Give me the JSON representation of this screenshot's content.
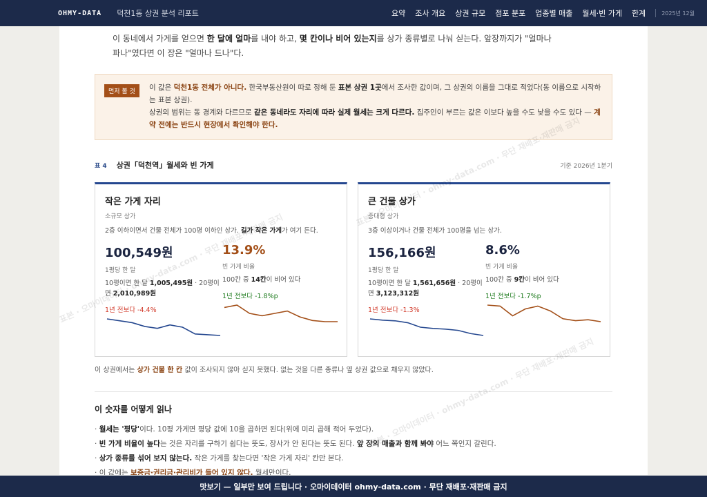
{
  "header": {
    "brand": "OHMY-DATA",
    "report_title": "덕천1동 상권 분석 리포트",
    "nav": [
      "요약",
      "조사 개요",
      "상권 규모",
      "점포 분포",
      "업종별 매출",
      "월세·빈 가게",
      "한계"
    ],
    "date_chip": "2025년 12월"
  },
  "intro": {
    "p1": "이 동네에서 가게를 얻으면 ",
    "b1": "한 달에 얼마",
    "p2": "를 내야 하고, ",
    "b2": "몇 칸이나 비어 있는지",
    "p3": "를 상가 종류별로 나눠 싣는다. 앞장까지가 \"얼마나 파나\"였다면 이 장은 \"얼마나 드나\"다."
  },
  "notice": {
    "badge": "먼저 볼 것",
    "t1": "이 값은 ",
    "a1": "덕천1동 전체가 아니다.",
    "t2": " 한국부동산원이 따로 정해 둔 ",
    "b1": "표본 상권 1곳",
    "t3": "에서 조사한 값이며, 그 상권의 이름을 그대로 적었다(동 이름으로 시작하는 표본 상권).",
    "t4": "상권의 범위는 동 경계와 다르므로 ",
    "b2": "같은 동네라도 자리에 따라 실제 월세는 크게 다르다.",
    "t5": " 집주인이 부르는 값은 이보다 높을 수도 낮을 수도 있다 — ",
    "a2": "계약 전에는 반드시 현장에서 확인해야 한다."
  },
  "table": {
    "number": "표 4",
    "title": "상권「덕천역」월세와 빈 가게",
    "basis": "기준 2026년 1분기"
  },
  "cards": [
    {
      "title": "작은 가게 자리",
      "subtitle": "소규모 상가",
      "desc_pre": "2층 이하이면서 건물 전체가 100평 이하인 상가. ",
      "desc_bold": "길가 작은 가게",
      "desc_post": "가 여기 든다.",
      "rent_value": "100,549원",
      "rent_label": "1평당 한 달",
      "rent_pre": "10평이면 한 달 ",
      "rent_b1": "1,005,495원",
      "rent_mid": " · 20평이면 ",
      "rent_b2": "2,010,989원",
      "rent_change": "1년 전보다 -4.4%",
      "vac_value": "13.9%",
      "vac_label": "빈 가게 비율",
      "vac_pre": "100칸 중 ",
      "vac_b": "14칸",
      "vac_post": "이 비어 있다",
      "vac_change": "1년 전보다 -1.8%p",
      "rent_trend": [
        100,
        99.5,
        99,
        98,
        97.5,
        98.4,
        97.8,
        96,
        95.8,
        95.6
      ],
      "vac_trend": [
        15.1,
        15.3,
        14.6,
        14.4,
        14.6,
        14.8,
        14.3,
        14.0,
        13.9,
        13.9
      ]
    },
    {
      "title": "큰 건물 상가",
      "subtitle": "중대형 상가",
      "desc_pre": "3층 이상이거나 건물 전체가 100평을 넘는 상가.",
      "desc_bold": "",
      "desc_post": "",
      "rent_value": "156,166원",
      "rent_label": "1평당 한 달",
      "rent_pre": "10평이면 한 달 ",
      "rent_b1": "1,561,656원",
      "rent_mid": " · 20평이면 ",
      "rent_b2": "3,123,312원",
      "rent_change": "1년 전보다 -1.3%",
      "vac_value": "8.6%",
      "vac_label": "빈 가게 비율",
      "vac_pre": "100칸 중 ",
      "vac_b": "9칸",
      "vac_post": "이 비어 있다",
      "vac_change": "1년 전보다 -1.7%p",
      "rent_trend": [
        100,
        99.8,
        99.7,
        99.4,
        98.7,
        98.5,
        98.4,
        98.2,
        97.7,
        97.4
      ],
      "vac_trend": [
        10.3,
        10.2,
        9.2,
        9.9,
        10.2,
        9.7,
        8.9,
        8.7,
        8.8,
        8.6
      ]
    }
  ],
  "note": {
    "pre": "이 상권에서는 ",
    "accent": "상가 건물 한 칸",
    "post": " 값이 조사되지 않아 싣지 못했다. 없는 것을 다른 종류나 옆 상권 값으로 채우지 않았다."
  },
  "section": {
    "title": "이 숫자를 어떻게 읽나",
    "b1_bold": "월세는 '평당'",
    "b1_post": "이다. 10평 가게면 평당 값에 10을 곱하면 된다(위에 미리 곱해 적어 두었다).",
    "b2_bold": "빈 가게 비율이 높다",
    "b2_mid": "는 것은 자리를 구하기 쉽다는 뜻도, 장사가 안 된다는 뜻도 된다. ",
    "b2_bold2": "앞 장의 매출과 함께 봐야",
    "b2_post": " 어느 쪽인지 갈린다.",
    "b3_bold": "상가 종류를 섞어 보지 않는다.",
    "b3_post": " 작은 가게를 찾는다면 '작은 가게 자리' 칸만 본다.",
    "b4_pre": "이 값에는 ",
    "b4_accent": "보증금·권리금·관리비가 들어 있지 않다.",
    "b4_post": " 월세만이다."
  },
  "footer": {
    "text": "맛보기 — 일부만 보여 드립니다 · 오마이데이터 ohmy-data.com · 무단 재배포·재판매 금지"
  },
  "watermark": "표본 · 오마이데이터 · ohmy-data.com · 무단 재배포·재판매 금지",
  "colors": {
    "header_bg": "#1c2a4a",
    "accent_orange": "#a34f18",
    "rent_line": "#24478f",
    "vacancy_line": "#a34f18",
    "down": "#d23a2a",
    "green": "#1d7a1d"
  }
}
